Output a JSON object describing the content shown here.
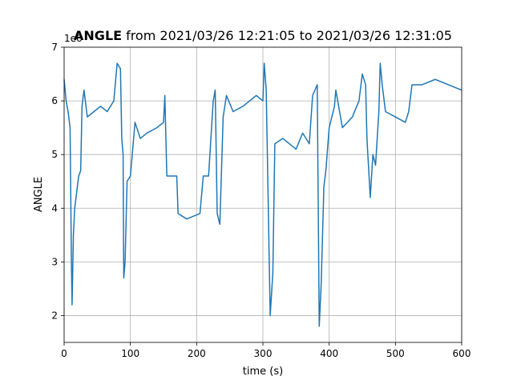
{
  "chart_data": {
    "type": "line",
    "title_parts": [
      "ANGLE",
      "from 2021/03/26 12:21:05 to 2021/03/26 12:31:05"
    ],
    "xlabel": "time (s)",
    "ylabel": "ANGLE",
    "y_offset_label": "1e6",
    "x": [
      0,
      3,
      6,
      9,
      11,
      12,
      14,
      16,
      19,
      22,
      25,
      27,
      30,
      35,
      45,
      55,
      65,
      75,
      80,
      85,
      87,
      89,
      90,
      92,
      95,
      100,
      107,
      115,
      125,
      140,
      150,
      152,
      155,
      170,
      172,
      185,
      205,
      210,
      218,
      225,
      228,
      231,
      235,
      240,
      245,
      255,
      270,
      290,
      300,
      302,
      305,
      311,
      315,
      318,
      330,
      350,
      360,
      370,
      375,
      382,
      385,
      388,
      392,
      395,
      400,
      408,
      410,
      420,
      435,
      445,
      450,
      455,
      457,
      462,
      466,
      470,
      475,
      477,
      480,
      485,
      500,
      515,
      520,
      525,
      540,
      560,
      580,
      600
    ],
    "series": [
      {
        "name": "ANGLE",
        "color": "#1f77b4",
        "values": [
          6.4,
          6.0,
          5.8,
          5.5,
          3.0,
          2.2,
          3.5,
          4.0,
          4.3,
          4.6,
          4.7,
          5.9,
          6.2,
          5.7,
          5.8,
          5.9,
          5.8,
          6.0,
          6.7,
          6.6,
          5.3,
          5.0,
          2.7,
          3.0,
          4.5,
          4.6,
          5.6,
          5.3,
          5.4,
          5.5,
          5.6,
          6.1,
          4.6,
          4.6,
          3.9,
          3.8,
          3.9,
          4.6,
          4.6,
          6.0,
          6.2,
          3.9,
          3.7,
          5.7,
          6.1,
          5.8,
          5.9,
          6.1,
          6.0,
          6.7,
          6.2,
          2.0,
          2.8,
          5.2,
          5.3,
          5.1,
          5.4,
          5.2,
          6.1,
          6.3,
          1.8,
          2.6,
          4.4,
          4.7,
          5.5,
          5.9,
          6.2,
          5.5,
          5.7,
          6.0,
          6.5,
          6.3,
          5.3,
          4.2,
          5.0,
          4.8,
          5.8,
          6.7,
          6.3,
          5.8,
          5.7,
          5.6,
          5.8,
          6.3,
          6.3,
          6.4,
          6.3,
          6.2
        ]
      }
    ],
    "xlim": [
      0,
      600
    ],
    "ylim": [
      1.5,
      7
    ],
    "xticks": [
      0,
      100,
      200,
      300,
      400,
      500,
      600
    ],
    "yticks": [
      2,
      3,
      4,
      5,
      6,
      7
    ],
    "grid": true
  }
}
